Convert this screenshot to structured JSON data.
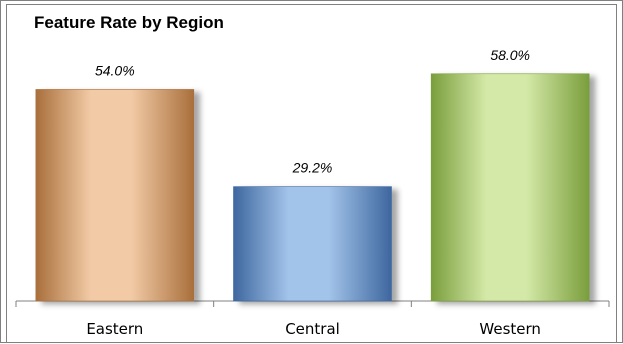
{
  "chart_data": {
    "type": "bar",
    "title": "Feature Rate by Region",
    "categories": [
      "Eastern",
      "Central",
      "Western"
    ],
    "values": [
      54.0,
      29.2,
      58.0
    ],
    "value_labels": [
      "54.0%",
      "29.2%",
      "58.0%"
    ],
    "ylim": [
      0,
      65.6
    ],
    "xlabel": "",
    "ylabel": "",
    "grid": false,
    "legend": "none",
    "colors": {
      "Eastern": {
        "dark": "#a96f3c",
        "light": "#f2cba6"
      },
      "Central": {
        "dark": "#3e679f",
        "light": "#a3c4ea"
      },
      "Western": {
        "dark": "#7a9e3c",
        "light": "#d4e9a8"
      }
    }
  }
}
